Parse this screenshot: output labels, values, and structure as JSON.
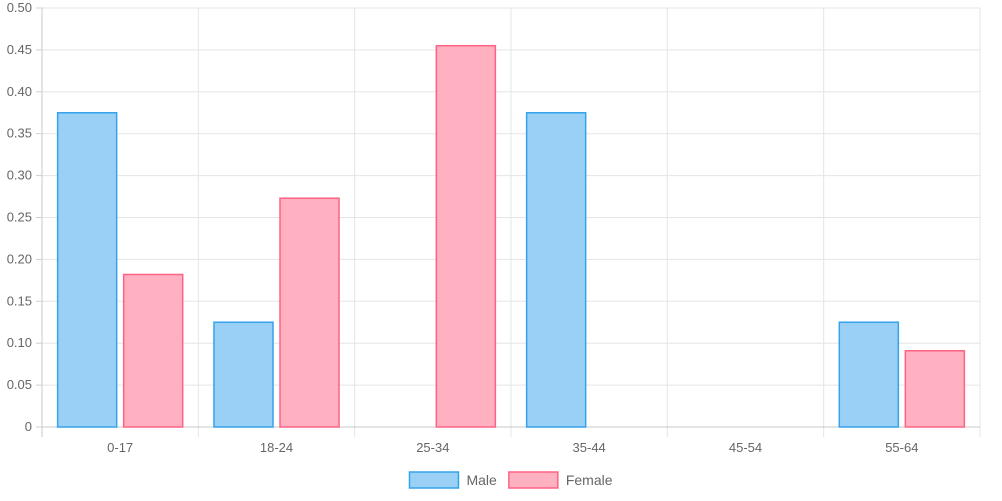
{
  "chart_data": {
    "type": "bar",
    "title": "",
    "xlabel": "",
    "ylabel": "",
    "categories": [
      "0-17",
      "18-24",
      "25-34",
      "35-44",
      "45-54",
      "55-64"
    ],
    "series": [
      {
        "name": "Male",
        "values": [
          0.375,
          0.125,
          0,
          0.375,
          0,
          0.125
        ],
        "fill": "#9ad0f5",
        "stroke": "#36a2eb"
      },
      {
        "name": "Female",
        "values": [
          0.182,
          0.273,
          0.455,
          0,
          0,
          0.091
        ],
        "fill": "#ffb1c1",
        "stroke": "#ff6384"
      }
    ],
    "ylim": [
      0,
      0.5
    ],
    "yticks": [
      "0",
      "0.05",
      "0.10",
      "0.15",
      "0.20",
      "0.25",
      "0.30",
      "0.35",
      "0.40",
      "0.45",
      "0.50"
    ],
    "grid": true,
    "legend_position": "bottom"
  }
}
